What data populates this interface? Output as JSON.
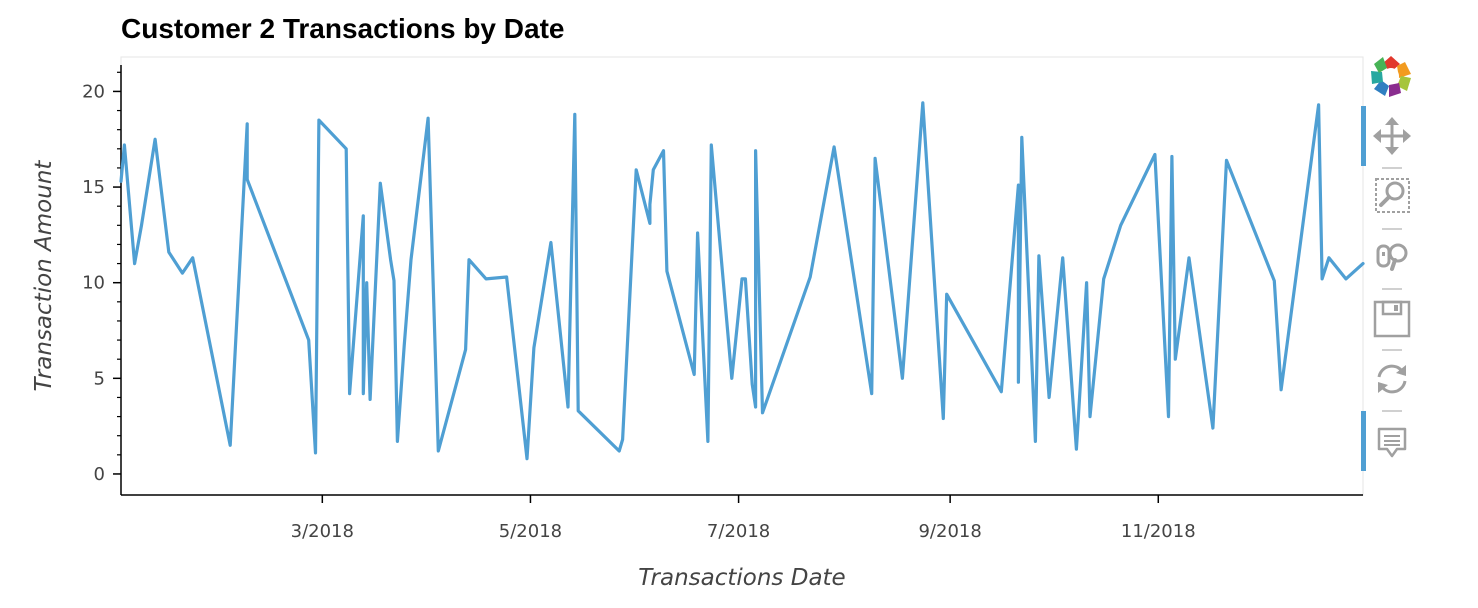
{
  "chart_data": {
    "type": "line",
    "title": "Customer 2 Transactions by Date",
    "xlabel": "Transactions Date",
    "ylabel": "Transaction Amount",
    "xlim": [
      "2018-01-01",
      "2018-12-31"
    ],
    "ylim": [
      -1.1,
      21.8
    ],
    "grid": false,
    "x_ticks": [
      {
        "date": "2018-03-01",
        "label": "3/2018"
      },
      {
        "date": "2018-05-01",
        "label": "5/2018"
      },
      {
        "date": "2018-07-01",
        "label": "7/2018"
      },
      {
        "date": "2018-09-01",
        "label": "9/2018"
      },
      {
        "date": "2018-11-01",
        "label": "11/2018"
      }
    ],
    "y_ticks": [
      0,
      5,
      10,
      15,
      20
    ],
    "series": [
      {
        "color": "#4f9fd3",
        "points": [
          [
            "2018-01-01",
            15.3
          ],
          [
            "2018-01-02",
            17.2
          ],
          [
            "2018-01-05",
            11.0
          ],
          [
            "2018-01-07",
            13.0
          ],
          [
            "2018-01-11",
            17.5
          ],
          [
            "2018-01-15",
            11.6
          ],
          [
            "2018-01-19",
            10.5
          ],
          [
            "2018-01-22",
            11.3
          ],
          [
            "2018-02-02",
            1.5
          ],
          [
            "2018-02-07",
            18.3
          ],
          [
            "2018-02-07",
            15.4
          ],
          [
            "2018-02-25",
            7.0
          ],
          [
            "2018-02-27",
            1.1
          ],
          [
            "2018-02-28",
            18.5
          ],
          [
            "2018-03-08",
            17.0
          ],
          [
            "2018-03-09",
            4.2
          ],
          [
            "2018-03-13",
            13.5
          ],
          [
            "2018-03-13",
            4.2
          ],
          [
            "2018-03-14",
            10.0
          ],
          [
            "2018-03-15",
            3.9
          ],
          [
            "2018-03-18",
            15.2
          ],
          [
            "2018-03-21",
            11.2
          ],
          [
            "2018-03-22",
            10.1
          ],
          [
            "2018-03-23",
            1.7
          ],
          [
            "2018-03-25",
            6.7
          ],
          [
            "2018-03-27",
            11.2
          ],
          [
            "2018-04-01",
            18.6
          ],
          [
            "2018-04-04",
            1.2
          ],
          [
            "2018-04-12",
            6.5
          ],
          [
            "2018-04-13",
            11.2
          ],
          [
            "2018-04-18",
            10.2
          ],
          [
            "2018-04-24",
            10.3
          ],
          [
            "2018-04-30",
            0.8
          ],
          [
            "2018-05-02",
            6.6
          ],
          [
            "2018-05-07",
            12.1
          ],
          [
            "2018-05-12",
            3.5
          ],
          [
            "2018-05-14",
            18.8
          ],
          [
            "2018-05-15",
            3.3
          ],
          [
            "2018-05-27",
            1.2
          ],
          [
            "2018-05-28",
            1.8
          ],
          [
            "2018-06-01",
            15.9
          ],
          [
            "2018-06-05",
            13.1
          ],
          [
            "2018-06-05",
            14.1
          ],
          [
            "2018-06-06",
            15.9
          ],
          [
            "2018-06-09",
            16.9
          ],
          [
            "2018-06-10",
            10.6
          ],
          [
            "2018-06-18",
            5.2
          ],
          [
            "2018-06-19",
            12.6
          ],
          [
            "2018-06-22",
            1.7
          ],
          [
            "2018-06-23",
            17.2
          ],
          [
            "2018-06-29",
            5.0
          ],
          [
            "2018-07-02",
            10.2
          ],
          [
            "2018-07-03",
            10.2
          ],
          [
            "2018-07-05",
            4.7
          ],
          [
            "2018-07-06",
            3.5
          ],
          [
            "2018-07-06",
            16.9
          ],
          [
            "2018-07-08",
            3.2
          ],
          [
            "2018-07-22",
            10.3
          ],
          [
            "2018-07-29",
            17.1
          ],
          [
            "2018-08-09",
            4.2
          ],
          [
            "2018-08-10",
            16.5
          ],
          [
            "2018-08-18",
            5.0
          ],
          [
            "2018-08-24",
            19.4
          ],
          [
            "2018-08-30",
            2.9
          ],
          [
            "2018-08-31",
            9.4
          ],
          [
            "2018-09-16",
            4.3
          ],
          [
            "2018-09-21",
            15.1
          ],
          [
            "2018-09-21",
            4.8
          ],
          [
            "2018-09-22",
            17.6
          ],
          [
            "2018-09-26",
            1.7
          ],
          [
            "2018-09-27",
            11.4
          ],
          [
            "2018-09-30",
            4.0
          ],
          [
            "2018-10-04",
            11.3
          ],
          [
            "2018-10-08",
            1.3
          ],
          [
            "2018-10-11",
            10.0
          ],
          [
            "2018-10-12",
            3.0
          ],
          [
            "2018-10-16",
            10.2
          ],
          [
            "2018-10-21",
            13.0
          ],
          [
            "2018-10-31",
            16.7
          ],
          [
            "2018-11-04",
            3.0
          ],
          [
            "2018-11-05",
            16.6
          ],
          [
            "2018-11-06",
            6.0
          ],
          [
            "2018-11-10",
            11.3
          ],
          [
            "2018-11-17",
            2.4
          ],
          [
            "2018-11-21",
            16.4
          ],
          [
            "2018-12-05",
            10.1
          ],
          [
            "2018-12-07",
            4.4
          ],
          [
            "2018-12-18",
            19.3
          ],
          [
            "2018-12-19",
            10.2
          ],
          [
            "2018-12-21",
            11.3
          ],
          [
            "2018-12-26",
            10.2
          ],
          [
            "2018-12-31",
            11.0
          ]
        ]
      }
    ]
  },
  "toolbar": {
    "logo_icon": "bokeh-logo-icon",
    "tools": [
      {
        "icon": "pan-icon",
        "active": true
      },
      {
        "icon": "box-zoom-icon",
        "active": false
      },
      {
        "icon": "wheel-zoom-icon",
        "active": false
      },
      {
        "icon": "save-icon",
        "active": false
      },
      {
        "icon": "reset-icon",
        "active": false
      },
      {
        "icon": "hover-icon",
        "active": true
      }
    ],
    "active_color": "#4f9fd3",
    "icon_color": "#a0a0a0"
  }
}
